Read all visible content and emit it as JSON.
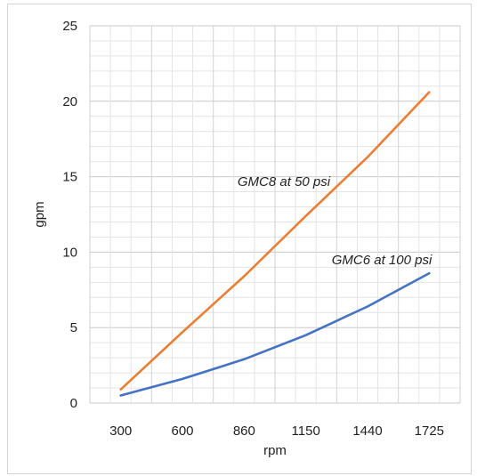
{
  "chart_data": {
    "type": "line",
    "title": "",
    "xlabel": "rpm",
    "ylabel": "gpm",
    "ylim": [
      0,
      25
    ],
    "y_ticks": [
      0,
      5,
      10,
      15,
      20,
      25
    ],
    "categories": [
      "300",
      "600",
      "860",
      "1150",
      "1440",
      "1725"
    ],
    "x": [
      300,
      600,
      860,
      1150,
      1440,
      1725
    ],
    "grid": true,
    "legend": "none",
    "series": [
      {
        "name": "GMC8 at 50 psi",
        "color": "#ed7d31",
        "values": [
          0.9,
          4.7,
          8.4,
          12.4,
          16.3,
          20.6
        ]
      },
      {
        "name": "GMC6 at 100 psi",
        "color": "#4472c4",
        "values": [
          0.5,
          1.6,
          2.9,
          4.5,
          6.4,
          8.6
        ]
      }
    ]
  }
}
